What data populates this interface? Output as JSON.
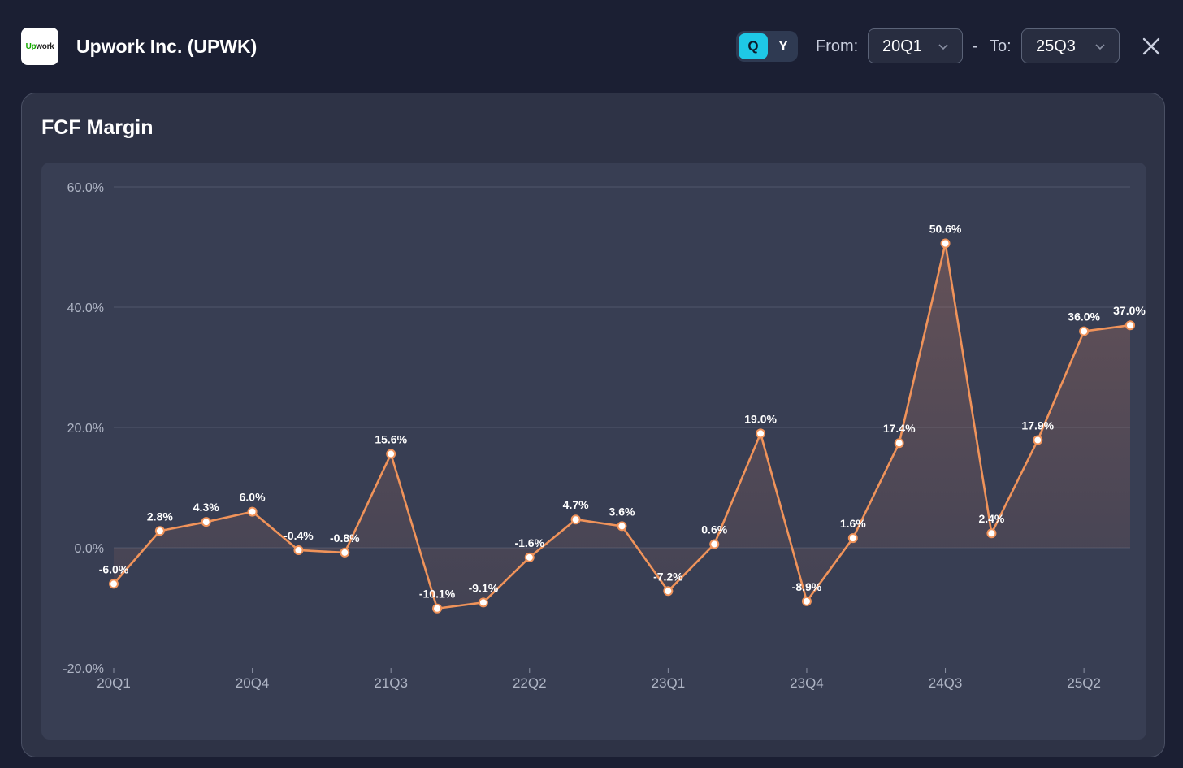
{
  "header": {
    "logo_text_green": "Up",
    "logo_text_dark": "work",
    "title": "Upwork Inc. (UPWK)",
    "period_toggle": {
      "q_label": "Q",
      "y_label": "Y",
      "selected": "Q"
    },
    "from_label": "From:",
    "from_value": "20Q1",
    "separator": "-",
    "to_label": "To:",
    "to_value": "25Q3",
    "icons": {
      "chevron": "chevron-down-icon",
      "close": "close-icon"
    }
  },
  "card": {
    "title": "FCF Margin"
  },
  "colors": {
    "line": "#f0935a",
    "accent": "#1ec8e6",
    "grid": "#4f566b"
  },
  "chart_data": {
    "type": "line",
    "title": "FCF Margin",
    "xlabel": "",
    "ylabel": "",
    "ylim": [
      -20,
      60
    ],
    "yticks": [
      -20,
      0,
      20,
      40,
      60
    ],
    "ytick_labels": [
      "-20.0%",
      "0.0%",
      "20.0%",
      "40.0%",
      "60.0%"
    ],
    "categories": [
      "20Q1",
      "20Q2",
      "20Q3",
      "20Q4",
      "21Q1",
      "21Q2",
      "21Q3",
      "21Q4",
      "22Q1",
      "22Q2",
      "22Q3",
      "22Q4",
      "23Q1",
      "23Q2",
      "23Q3",
      "23Q4",
      "24Q1",
      "24Q2",
      "24Q3",
      "24Q4",
      "25Q1",
      "25Q2",
      "25Q3"
    ],
    "xtick_labels": [
      "20Q1",
      "20Q4",
      "21Q3",
      "22Q2",
      "23Q1",
      "23Q4",
      "24Q3",
      "25Q2"
    ],
    "series": [
      {
        "name": "FCF Margin",
        "values": [
          -6.0,
          2.8,
          4.3,
          6.0,
          -0.4,
          -0.8,
          15.6,
          -10.1,
          -9.1,
          -1.6,
          4.7,
          3.6,
          -7.2,
          0.6,
          19.0,
          -8.9,
          1.6,
          17.4,
          50.6,
          2.4,
          17.9,
          36.0,
          37.0
        ],
        "labels": [
          "-6.0%",
          "2.8%",
          "4.3%",
          "6.0%",
          "-0.4%",
          "-0.8%",
          "15.6%",
          "-10.1%",
          "-9.1%",
          "-1.6%",
          "4.7%",
          "3.6%",
          "-7.2%",
          "0.6%",
          "19.0%",
          "-8.9%",
          "1.6%",
          "17.4%",
          "50.6%",
          "2.4%",
          "17.9%",
          "36.0%",
          "37.0%"
        ]
      }
    ],
    "grid": true,
    "legend": "none"
  }
}
